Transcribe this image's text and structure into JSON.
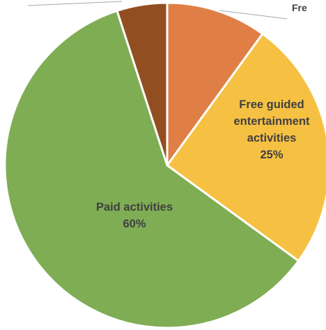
{
  "chart_data": {
    "type": "pie",
    "title": "",
    "start_angle_deg": 0,
    "direction": "clockwise",
    "slices": [
      {
        "label_lines": [
          "Fre"
        ],
        "percent_text": "",
        "value": 10,
        "color": "#E07F45",
        "label_position": "outside-top-right",
        "label_color": "dark"
      },
      {
        "label_lines": [
          "Free guided",
          "entertainment",
          "activities"
        ],
        "percent_text": "25%",
        "value": 25,
        "color": "#F6C143",
        "label_position": "inside",
        "label_color": "dark"
      },
      {
        "label_lines": [
          "Paid activities"
        ],
        "percent_text": "60%",
        "value": 60,
        "color": "#7FAD54",
        "label_position": "inside",
        "label_color": "dark"
      },
      {
        "label_lines": [],
        "percent_text": "",
        "value": 5,
        "color": "#924E21",
        "label_position": "none",
        "label_color": "dark"
      }
    ]
  }
}
